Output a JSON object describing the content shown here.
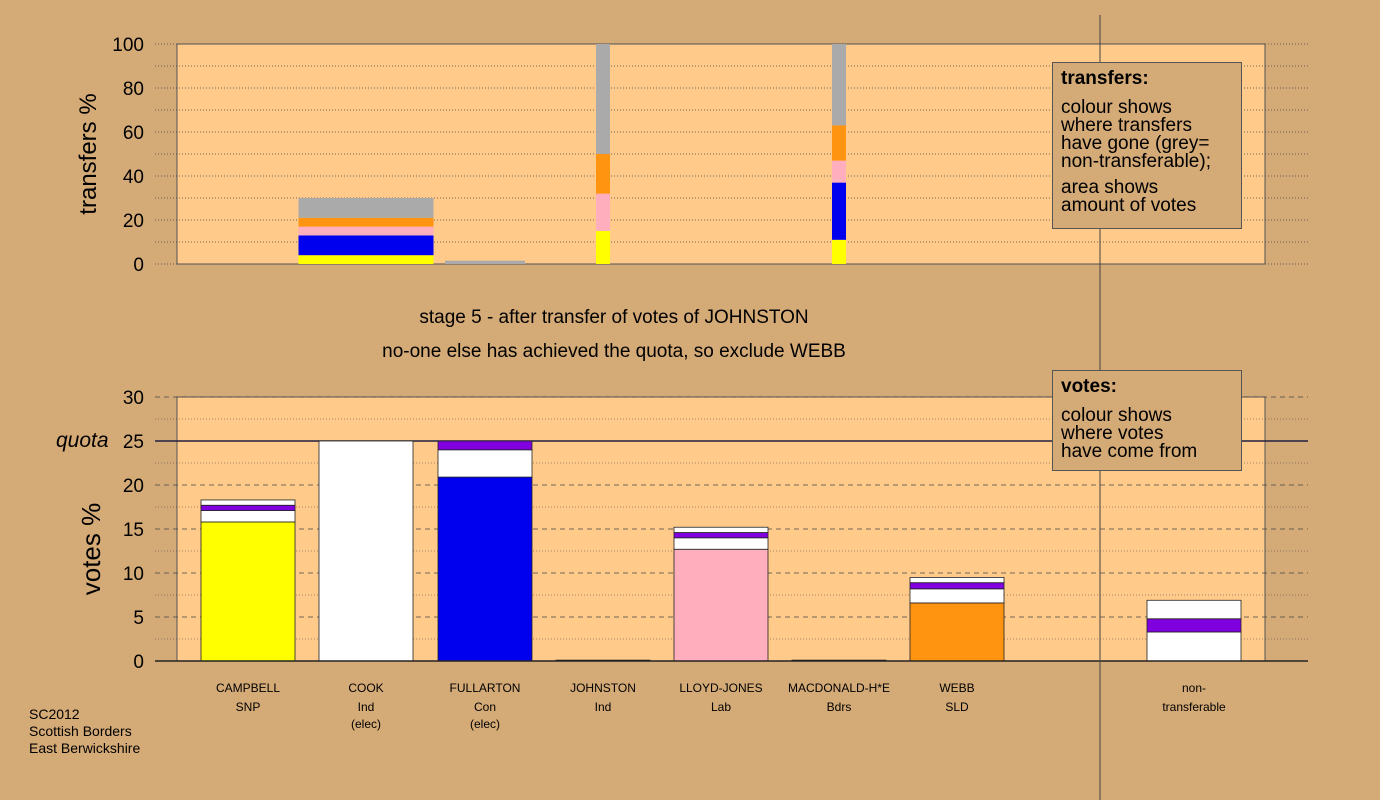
{
  "colors": {
    "background": "#d4aa77",
    "plot_background": "#ffca8a",
    "SNP": "#ffff00",
    "Ind": "#ffffff",
    "Con": "#0000ee",
    "Lab": "#ffaebe",
    "Bdrs": "#ffffff",
    "SLD": "#ff9410",
    "Ind_JOHNSTON": "#8000e0",
    "non_transferable": "#aaaaaa"
  },
  "header": {
    "line1": "stage 5 - after transfer of votes of JOHNSTON",
    "line2": "no-one else has achieved the quota, so exclude WEBB"
  },
  "quota_label": "quota",
  "transfers_box": {
    "title": "transfers:",
    "lines1": [
      "colour shows",
      "where transfers",
      "have gone (grey=",
      "non-transferable);"
    ],
    "lines2": [
      "area shows",
      "amount of votes"
    ]
  },
  "votes_box": {
    "title": "votes:",
    "lines": [
      "colour shows",
      "where votes",
      "have come from"
    ]
  },
  "footer": {
    "line1": "SC2012",
    "line2": "Scottish Borders",
    "line3": "East Berwickshire"
  },
  "chart_data": [
    {
      "type": "bar",
      "stacked": true,
      "ylabel": "transfers %",
      "ylim": [
        0,
        100
      ],
      "yticks": [
        0,
        20,
        40,
        60,
        80,
        100
      ],
      "grid": "dotted",
      "bars": [
        {
          "column": "CAMPBELL",
          "segments": [
            {
              "source": "SNP",
              "from": 0,
              "to": 4
            },
            {
              "source": "Con",
              "from": 4,
              "to": 13
            },
            {
              "source": "Lab",
              "from": 13,
              "to": 17
            },
            {
              "source": "SLD",
              "from": 17,
              "to": 21
            },
            {
              "source": "non_transferable",
              "from": 21,
              "to": 30
            }
          ]
        },
        {
          "column": "COOK",
          "segments": [
            {
              "source": "non_transferable",
              "from": 0,
              "to": 1.5
            }
          ]
        },
        {
          "column": "FULLARTON",
          "segments": [
            {
              "source": "SNP",
              "from": 0,
              "to": 15
            },
            {
              "source": "Lab",
              "from": 15,
              "to": 32
            },
            {
              "source": "SLD",
              "from": 32,
              "to": 50
            },
            {
              "source": "non_transferable",
              "from": 50,
              "to": 100
            }
          ]
        },
        {
          "column": "LLOYD-JONES",
          "segments": [
            {
              "source": "SNP",
              "from": 0,
              "to": 11
            },
            {
              "source": "Con",
              "from": 11,
              "to": 37
            },
            {
              "source": "Lab",
              "from": 37,
              "to": 47
            },
            {
              "source": "SLD",
              "from": 47,
              "to": 63
            },
            {
              "source": "non_transferable",
              "from": 63,
              "to": 100
            }
          ]
        }
      ]
    },
    {
      "type": "bar",
      "stacked": true,
      "ylabel": "votes %",
      "ylim": [
        0,
        30
      ],
      "yticks": [
        0,
        5,
        10,
        15,
        20,
        25,
        30
      ],
      "quota": 25,
      "grid": "dashed",
      "columns": [
        {
          "name": "CAMPBELL",
          "party": "SNP",
          "note": ""
        },
        {
          "name": "COOK",
          "party": "Ind",
          "note": "(elec)"
        },
        {
          "name": "FULLARTON",
          "party": "Con",
          "note": "(elec)"
        },
        {
          "name": "JOHNSTON",
          "party": "Ind",
          "note": ""
        },
        {
          "name": "LLOYD-JONES",
          "party": "Lab",
          "note": ""
        },
        {
          "name": "MACDONALD-H*E",
          "party": "Bdrs",
          "note": ""
        },
        {
          "name": "WEBB",
          "party": "SLD",
          "note": ""
        }
      ],
      "nontransferable_label": [
        "non-",
        "transferable"
      ],
      "bars": [
        {
          "column": "CAMPBELL",
          "segments": [
            {
              "source": "SNP",
              "value": 15.8
            },
            {
              "source": "Ind",
              "value": 1.3
            },
            {
              "source": "Ind_JOHNSTON",
              "value": 0.6
            },
            {
              "source": "Ind",
              "value": 0.6
            }
          ]
        },
        {
          "column": "COOK",
          "segments": [
            {
              "source": "Ind",
              "value": 25.0
            }
          ]
        },
        {
          "column": "FULLARTON",
          "segments": [
            {
              "source": "Con",
              "value": 20.9
            },
            {
              "source": "Ind",
              "value": 3.1
            },
            {
              "source": "Ind_JOHNSTON",
              "value": 1.0
            }
          ]
        },
        {
          "column": "JOHNSTON",
          "segments": [
            {
              "source": "Ind_JOHNSTON",
              "value": 0.1
            }
          ]
        },
        {
          "column": "LLOYD-JONES",
          "segments": [
            {
              "source": "Lab",
              "value": 12.7
            },
            {
              "source": "Ind",
              "value": 1.3
            },
            {
              "source": "Ind_JOHNSTON",
              "value": 0.6
            },
            {
              "source": "Ind",
              "value": 0.6
            }
          ]
        },
        {
          "column": "MACDONALD-H*E",
          "segments": [
            {
              "source": "Bdrs",
              "value": 0.1
            }
          ]
        },
        {
          "column": "WEBB",
          "segments": [
            {
              "source": "SLD",
              "value": 6.6
            },
            {
              "source": "Ind",
              "value": 1.6
            },
            {
              "source": "Ind_JOHNSTON",
              "value": 0.7
            },
            {
              "source": "Ind",
              "value": 0.6
            }
          ]
        },
        {
          "column": "non-transferable",
          "segments": [
            {
              "source": "Ind",
              "value": 3.3
            },
            {
              "source": "Ind_JOHNSTON",
              "value": 1.5
            },
            {
              "source": "Ind",
              "value": 2.1
            }
          ]
        }
      ]
    }
  ]
}
